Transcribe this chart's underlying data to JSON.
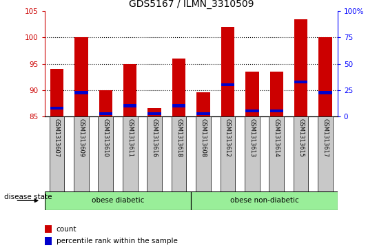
{
  "title": "GDS5167 / ILMN_3310509",
  "samples": [
    "GSM1313607",
    "GSM1313609",
    "GSM1313610",
    "GSM1313611",
    "GSM1313616",
    "GSM1313618",
    "GSM1313608",
    "GSM1313612",
    "GSM1313613",
    "GSM1313614",
    "GSM1313615",
    "GSM1313617"
  ],
  "red_tops": [
    94.0,
    100.0,
    90.0,
    95.0,
    86.5,
    96.0,
    89.5,
    102.0,
    93.5,
    93.5,
    103.5,
    100.0
  ],
  "blue_tops": [
    86.5,
    89.5,
    85.5,
    87.0,
    85.5,
    87.0,
    85.5,
    91.0,
    86.0,
    86.0,
    91.5,
    89.5
  ],
  "ymin": 85,
  "ymax": 105,
  "yticks_left": [
    85,
    90,
    95,
    100,
    105
  ],
  "right_ticks_y": [
    85,
    90,
    95,
    100,
    105
  ],
  "right_ticks_labels": [
    "0",
    "25",
    "50",
    "75",
    "100%"
  ],
  "bar_bottom": 85,
  "bar_color_red": "#cc0000",
  "bar_color_blue": "#0000cc",
  "bar_width": 0.55,
  "group1_label": "obese diabetic",
  "group2_label": "obese non-diabetic",
  "group1_count": 6,
  "group2_count": 6,
  "group_bg_color": "#99ee99",
  "xlabel_area": "disease state",
  "legend_count": "count",
  "legend_percentile": "percentile rank within the sample",
  "title_fontsize": 10,
  "tick_fontsize": 7.5,
  "xticklabel_fontsize": 6.0,
  "dotted_grid_yticks": [
    90,
    95,
    100
  ],
  "xticklabel_bg": "#c8c8c8",
  "blue_bar_height": 0.55
}
